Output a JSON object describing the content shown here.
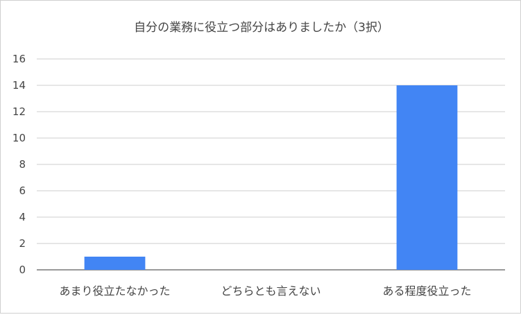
{
  "chart_data": {
    "type": "bar",
    "title": "自分の業務に役立つ部分はありましたか（3択）",
    "categories": [
      "あまり役立たなかった",
      "どちらとも言えない",
      "ある程度役立った"
    ],
    "values": [
      1,
      0,
      14
    ],
    "yticks": [
      0,
      2,
      4,
      6,
      8,
      10,
      12,
      14,
      16
    ],
    "ylim": [
      0,
      16
    ],
    "grid": true,
    "legend": "none",
    "bar_color": "#4285f4"
  }
}
